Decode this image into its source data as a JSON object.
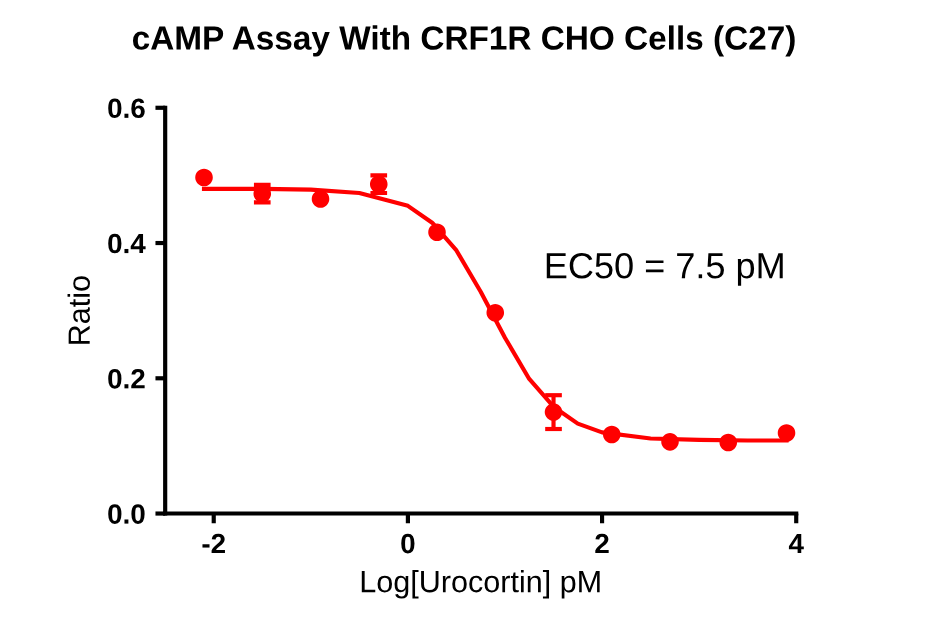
{
  "chart_data": {
    "type": "scatter",
    "title": "cAMP Assay With CRF1R CHO Cells (C27)",
    "xlabel": "Log[Urocortin] pM",
    "ylabel": "Ratio",
    "series": [
      {
        "color": "#ff0000",
        "marker": "circle",
        "x": [
          -2.1,
          -1.5,
          -0.9,
          -0.3,
          0.3,
          0.9,
          1.5,
          2.1,
          2.7,
          3.3,
          3.9
        ],
        "values": [
          0.497,
          0.473,
          0.465,
          0.487,
          0.416,
          0.297,
          0.15,
          0.117,
          0.106,
          0.105,
          0.119
        ],
        "errors": [
          null,
          0.013,
          null,
          0.013,
          null,
          null,
          0.025,
          null,
          null,
          null,
          null
        ]
      },
      {
        "type": "line",
        "color": "#ff0000",
        "line_style": "solid",
        "x": [
          -2.1,
          -1.5,
          -1,
          -0.5,
          0,
          0.25,
          0.5,
          0.75,
          1,
          1.25,
          1.5,
          1.75,
          2,
          2.5,
          3,
          3.5,
          3.9
        ],
        "values": [
          0.48,
          0.48,
          0.479,
          0.474,
          0.455,
          0.43,
          0.389,
          0.328,
          0.26,
          0.199,
          0.158,
          0.133,
          0.12,
          0.111,
          0.109,
          0.108,
          0.108
        ]
      }
    ],
    "xlim": [
      -2.5,
      4
    ],
    "xticks": [
      -2,
      0,
      2,
      4
    ],
    "ylim": [
      0,
      0.6
    ],
    "yticks": [
      {
        "value": 0,
        "label": "0.0"
      },
      {
        "value": 0.2,
        "label": "0.2"
      },
      {
        "value": 0.4,
        "label": "0.4"
      },
      {
        "value": 0.6,
        "label": "0.6"
      }
    ],
    "grid": false,
    "legend": false,
    "annotations": [
      "EC50 = 7.5 pM"
    ]
  }
}
